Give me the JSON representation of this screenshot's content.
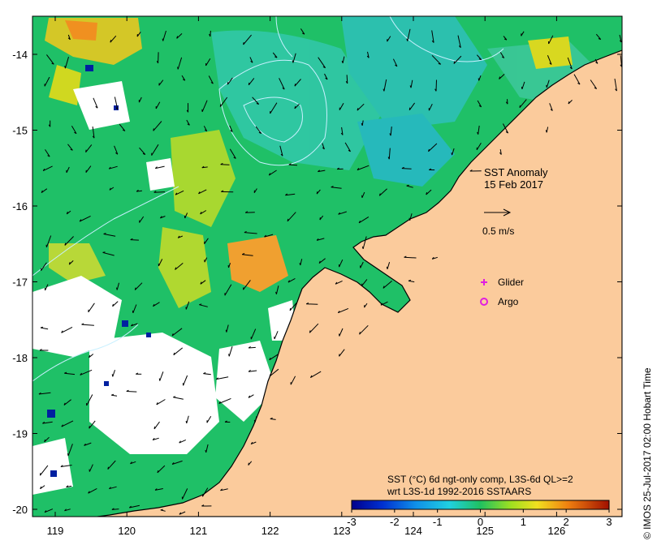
{
  "title_line1": "SST Anomaly",
  "title_line2": "15 Feb 2017",
  "scale_label": "0.5 m/s",
  "legend": {
    "glider": "Glider",
    "argo": "Argo"
  },
  "colorbar": {
    "title_line1": "SST (°C) 6d ngt-only comp, L3S-6d QL>=2",
    "title_line2": "wrt L3S-1d 1992-2016 SSTAARS",
    "ticks": [
      "-3",
      "-2",
      "-1",
      "0",
      "1",
      "2",
      "3"
    ]
  },
  "axes": {
    "lon_ticks": [
      "119",
      "120",
      "121",
      "122",
      "123",
      "124",
      "125",
      "126"
    ],
    "lat_ticks": [
      "-14",
      "-15",
      "-16",
      "-17",
      "-18",
      "-19",
      "-20"
    ]
  },
  "credit": "© IMOS 25-Jul-2017 02:00 Hobart Time",
  "colors": {
    "land": "#fbcb9c",
    "ocean_base": "#1fc067",
    "cloud": "#ffffff",
    "glider_marker": "#e01ee0",
    "argo_marker": "#e01ee0",
    "current_arrow": "#000000",
    "contour_line": "#c8f0ff"
  }
}
